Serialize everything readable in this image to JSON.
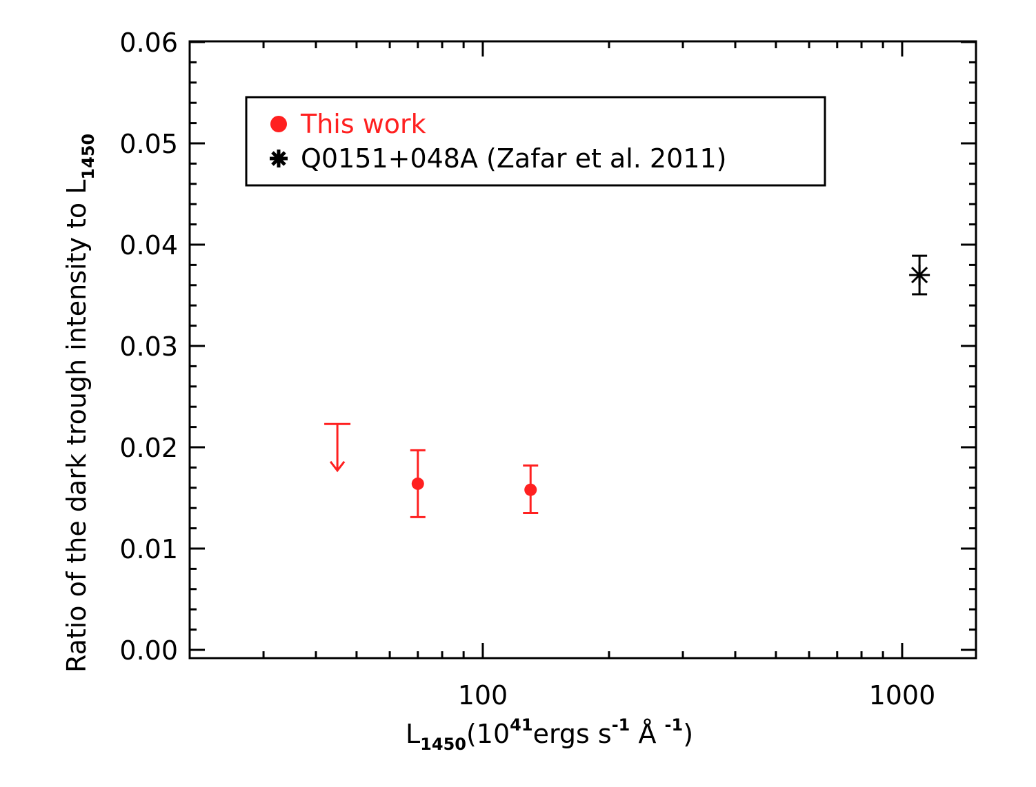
{
  "chart_data": {
    "type": "scatter",
    "title": "",
    "xscale": "log",
    "xlim": [
      20,
      1500
    ],
    "ylim": [
      0.0,
      0.06
    ],
    "x_ticks": [
      100,
      1000
    ],
    "x_tick_labels": [
      "100",
      "1000"
    ],
    "y_ticks": [
      0.0,
      0.01,
      0.02,
      0.03,
      0.04,
      0.05,
      0.06
    ],
    "y_tick_labels": [
      "0.00",
      "0.01",
      "0.02",
      "0.03",
      "0.04",
      "0.05",
      "0.06"
    ],
    "xlabel": {
      "base": "L",
      "sub": "1450",
      "pre": "(10",
      "sup": "41",
      "post": "ergs s",
      "sup2": "-1",
      "unit": " Å ",
      "sup3": "-1",
      "close": ")"
    },
    "ylabel": {
      "text": "Ratio of the dark trough intensity to L",
      "sub": "1450"
    },
    "legend_position": "top-left",
    "series": [
      {
        "name": "This work",
        "color": "#ff2020",
        "marker": "filled-circle",
        "points": [
          {
            "x": 70,
            "y": 0.0164,
            "yerr_low": 0.0131,
            "yerr_high": 0.0197
          },
          {
            "x": 130,
            "y": 0.0158,
            "yerr_low": 0.0135,
            "yerr_high": 0.0182
          }
        ],
        "upper_limits": [
          {
            "x": 45,
            "y": 0.0223,
            "arrow_to": 0.0177
          }
        ]
      },
      {
        "name": "Q0151+048A (Zafar et al. 2011)",
        "color": "#000000",
        "marker": "asterisk",
        "points": [
          {
            "x": 1100,
            "y": 0.037,
            "yerr_low": 0.0351,
            "yerr_high": 0.0389
          }
        ]
      }
    ]
  }
}
